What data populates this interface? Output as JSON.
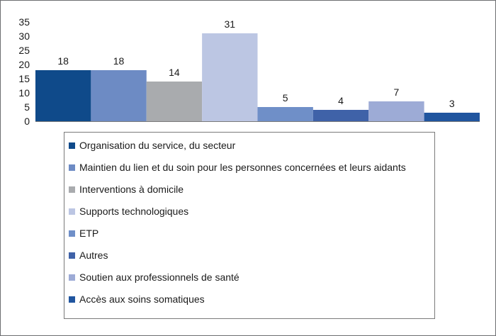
{
  "chart_data": {
    "type": "bar",
    "categories": [
      "Organisation du service, du secteur",
      "Maintien du lien et du soin pour les personnes concernées et leurs aidants",
      "Interventions à domicile",
      "Supports technologiques",
      "ETP",
      "Autres",
      "Soutien aux professionnels de santé",
      "Accès aux soins somatiques"
    ],
    "values": [
      18,
      18,
      14,
      31,
      5,
      4,
      7,
      3
    ],
    "data_labels": [
      "18",
      "18",
      "14",
      "31",
      "5",
      "4",
      "7",
      "3"
    ],
    "colors": [
      "#0f4a8a",
      "#6d8bc4",
      "#a9abae",
      "#bcc6e3",
      "#6f8fc8",
      "#3f62a8",
      "#9dabd6",
      "#20559f"
    ],
    "yticks": [
      "0",
      "5",
      "10",
      "15",
      "20",
      "25",
      "30",
      "35"
    ],
    "ylim": [
      0,
      35
    ],
    "legend_position": "bottom",
    "grid": false
  }
}
